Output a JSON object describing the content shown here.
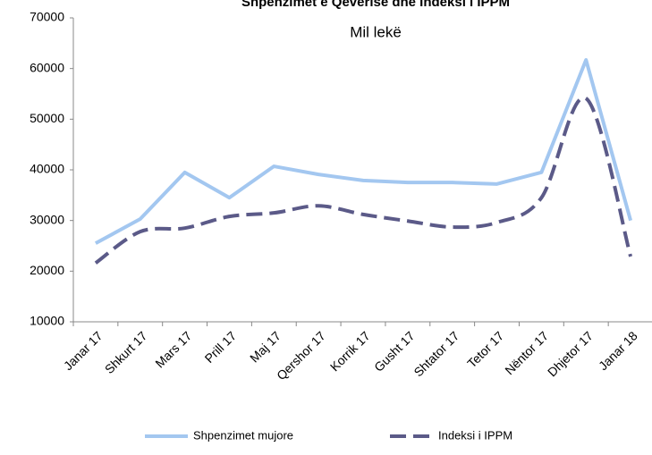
{
  "chart_data": {
    "type": "line",
    "title": "Shpenzimet e Qeverisë dhe Indeksi i IPPM",
    "subtitle": "Mil lekë",
    "categories": [
      "Janar 17",
      "Shkurt 17",
      "Mars 17",
      "Prill 17",
      "Maj 17",
      "Qershor 17",
      "Korrik 17",
      "Gusht 17",
      "Shtator 17",
      "Tetor 17",
      "Nëntor 17",
      "Dhjetor 17",
      "Janar 18"
    ],
    "series": [
      {
        "name": "Shpenzimet mujore",
        "color": "#a3c7f0",
        "style": "solid",
        "values": [
          25500,
          30300,
          39500,
          34500,
          40700,
          39100,
          37900,
          37500,
          37500,
          37200,
          39500,
          61700,
          30000
        ]
      },
      {
        "name": "Indeksi i IPPM",
        "color": "#5b5a88",
        "style": "dashed",
        "values": [
          21600,
          27800,
          28500,
          30800,
          31500,
          32900,
          31200,
          29900,
          28700,
          29600,
          34500,
          54100,
          22900
        ]
      }
    ],
    "ylim": [
      10000,
      70000
    ],
    "yticks": [
      10000,
      20000,
      30000,
      40000,
      50000,
      60000,
      70000
    ],
    "grid": false,
    "legend": "bottom"
  }
}
